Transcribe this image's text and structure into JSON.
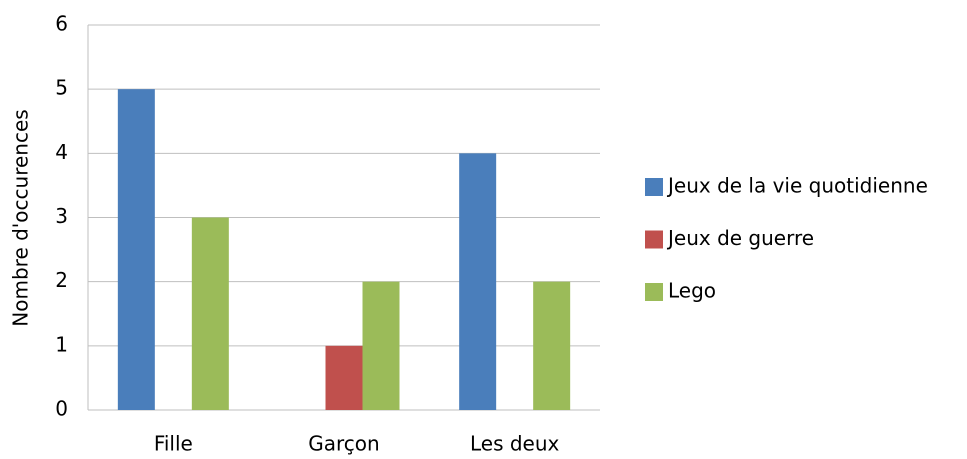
{
  "chart_data": {
    "type": "bar",
    "y_label": "Nombre d'occurences",
    "categories": [
      "Fille",
      "Garçon",
      "Les deux"
    ],
    "series": [
      {
        "name": "Jeux de la vie quotidienne",
        "color": "#4a7ebb",
        "values": [
          5,
          0,
          4
        ]
      },
      {
        "name": "Jeux de guerre",
        "color": "#c0504d",
        "values": [
          0,
          1,
          0
        ]
      },
      {
        "name": "Lego",
        "color": "#9bbb59",
        "values": [
          3,
          2,
          2
        ]
      }
    ],
    "ylim": [
      0,
      6
    ],
    "yticks": [
      0,
      1,
      2,
      3,
      4,
      5,
      6
    ],
    "grid": true,
    "legend": "right"
  }
}
